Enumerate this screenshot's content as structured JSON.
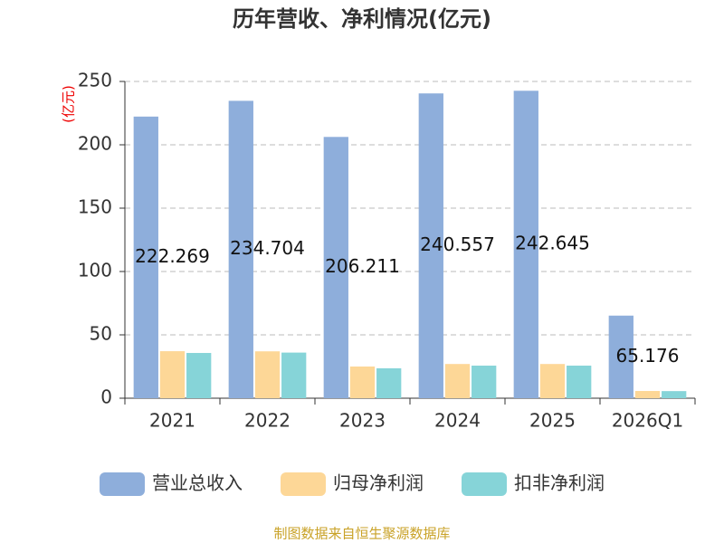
{
  "chart_data": {
    "type": "bar",
    "title": "历年营收、净利情况(亿元)",
    "y_label": "(亿元)",
    "categories": [
      "2021",
      "2022",
      "2023",
      "2024",
      "2025",
      "2026Q1"
    ],
    "series": [
      {
        "name": "营业总收入",
        "color": "#8eaedb",
        "values": [
          222.269,
          234.704,
          206.211,
          240.557,
          242.645,
          65.176
        ],
        "show_labels": true
      },
      {
        "name": "归母净利润",
        "color": "#fdd797",
        "values": [
          37.1,
          37,
          25,
          27,
          27,
          5.7
        ]
      },
      {
        "name": "扣非净利润",
        "color": "#86d4d8",
        "values": [
          35.7,
          36,
          23.6,
          25.7,
          25.7,
          5.6
        ]
      }
    ],
    "ylim": [
      0,
      250
    ],
    "yticks": [
      0,
      50,
      100,
      150,
      200,
      250
    ],
    "grid": true,
    "legend": "bottom",
    "source": "制图数据来自恒生聚源数据库"
  }
}
